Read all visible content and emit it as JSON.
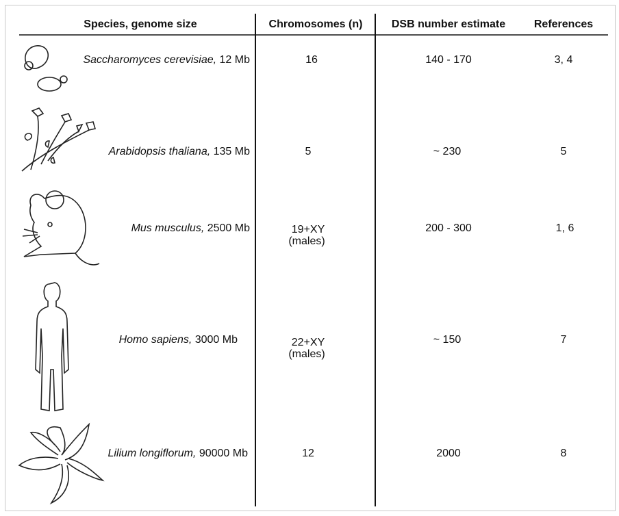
{
  "table": {
    "headers": [
      "Species, genome size",
      "Chromosomes (n)",
      "DSB number estimate",
      "References"
    ],
    "rows": [
      {
        "species": "Saccharomyces cerevisiae,",
        "genome_size": "12 Mb",
        "chromosomes": [
          "16"
        ],
        "dsb": "140 - 170",
        "references": "3, 4"
      },
      {
        "species": "Arabidopsis thaliana,",
        "genome_size": "135 Mb",
        "chromosomes": [
          "5"
        ],
        "dsb": "~ 230",
        "references": "5"
      },
      {
        "species": "Mus musculus,",
        "genome_size": "2500 Mb",
        "chromosomes": [
          "19+XY",
          "(males)"
        ],
        "dsb": "200 - 300",
        "references": "1, 6"
      },
      {
        "species": "Homo sapiens,",
        "genome_size": "3000 Mb",
        "chromosomes": [
          "22+XY",
          "(males)"
        ],
        "dsb": "~ 150",
        "references": "7"
      },
      {
        "species": "Lilium longiflorum,",
        "genome_size": "90000 Mb",
        "chromosomes": [
          "12"
        ],
        "dsb": "2000",
        "references": "8"
      }
    ]
  }
}
